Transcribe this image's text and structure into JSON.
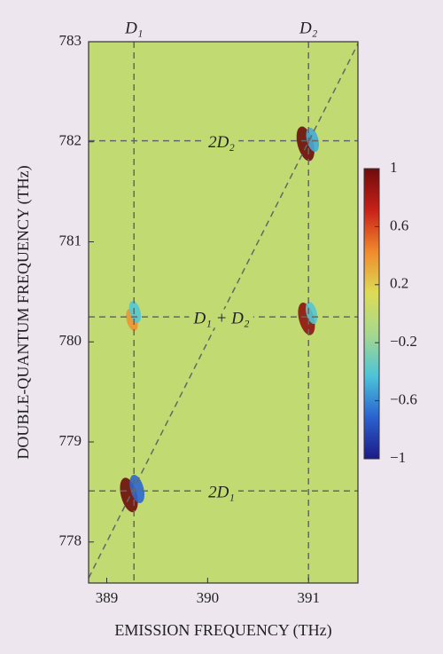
{
  "chart_data": {
    "type": "heatmap",
    "xlabel": "EMISSION FREQUENCY (THz)",
    "ylabel": "DOUBLE-QUANTUM FREQUENCY (THz)",
    "xlim": [
      388.82,
      391.49
    ],
    "ylim": [
      777.59,
      783
    ],
    "xticks": [
      389,
      390,
      391
    ],
    "yticks": [
      778,
      779,
      780,
      781,
      782,
      783
    ],
    "clim": [
      -1,
      1
    ],
    "cticks": [
      1,
      0.6,
      0.2,
      {
        "value": -0.2,
        "label": "−0.2"
      },
      {
        "value": -0.6,
        "label": "−0.6"
      },
      {
        "value": -1,
        "label": "−1"
      }
    ],
    "colormap": [
      "#1c1a86",
      "#2a62d0",
      "#4cc4d8",
      "#a6d88e",
      "#dcdc56",
      "#f08a2c",
      "#c82018",
      "#6e0c0c"
    ],
    "vlines": [
      {
        "x": 389.27,
        "label": "D₁"
      },
      {
        "x": 391.0,
        "label": "D₂"
      }
    ],
    "hlines": [
      {
        "y": 782.01,
        "label": "2D₂"
      },
      {
        "y": 780.25,
        "label": "D₁ + D₂"
      },
      {
        "y": 778.51,
        "label": "2D₁"
      }
    ],
    "peaks": [
      {
        "x": 389.22,
        "y": 778.47,
        "value": 1
      },
      {
        "x": 389.3,
        "y": 778.53,
        "value": -0.7
      },
      {
        "x": 390.97,
        "y": 781.98,
        "value": 1
      },
      {
        "x": 391.04,
        "y": 782.02,
        "value": -0.5
      },
      {
        "x": 390.98,
        "y": 780.23,
        "value": 0.9
      },
      {
        "x": 389.25,
        "y": 780.22,
        "value": 0.4
      },
      {
        "x": 389.28,
        "y": 780.3,
        "value": -0.4
      },
      {
        "x": 391.03,
        "y": 780.29,
        "value": -0.4
      }
    ]
  }
}
